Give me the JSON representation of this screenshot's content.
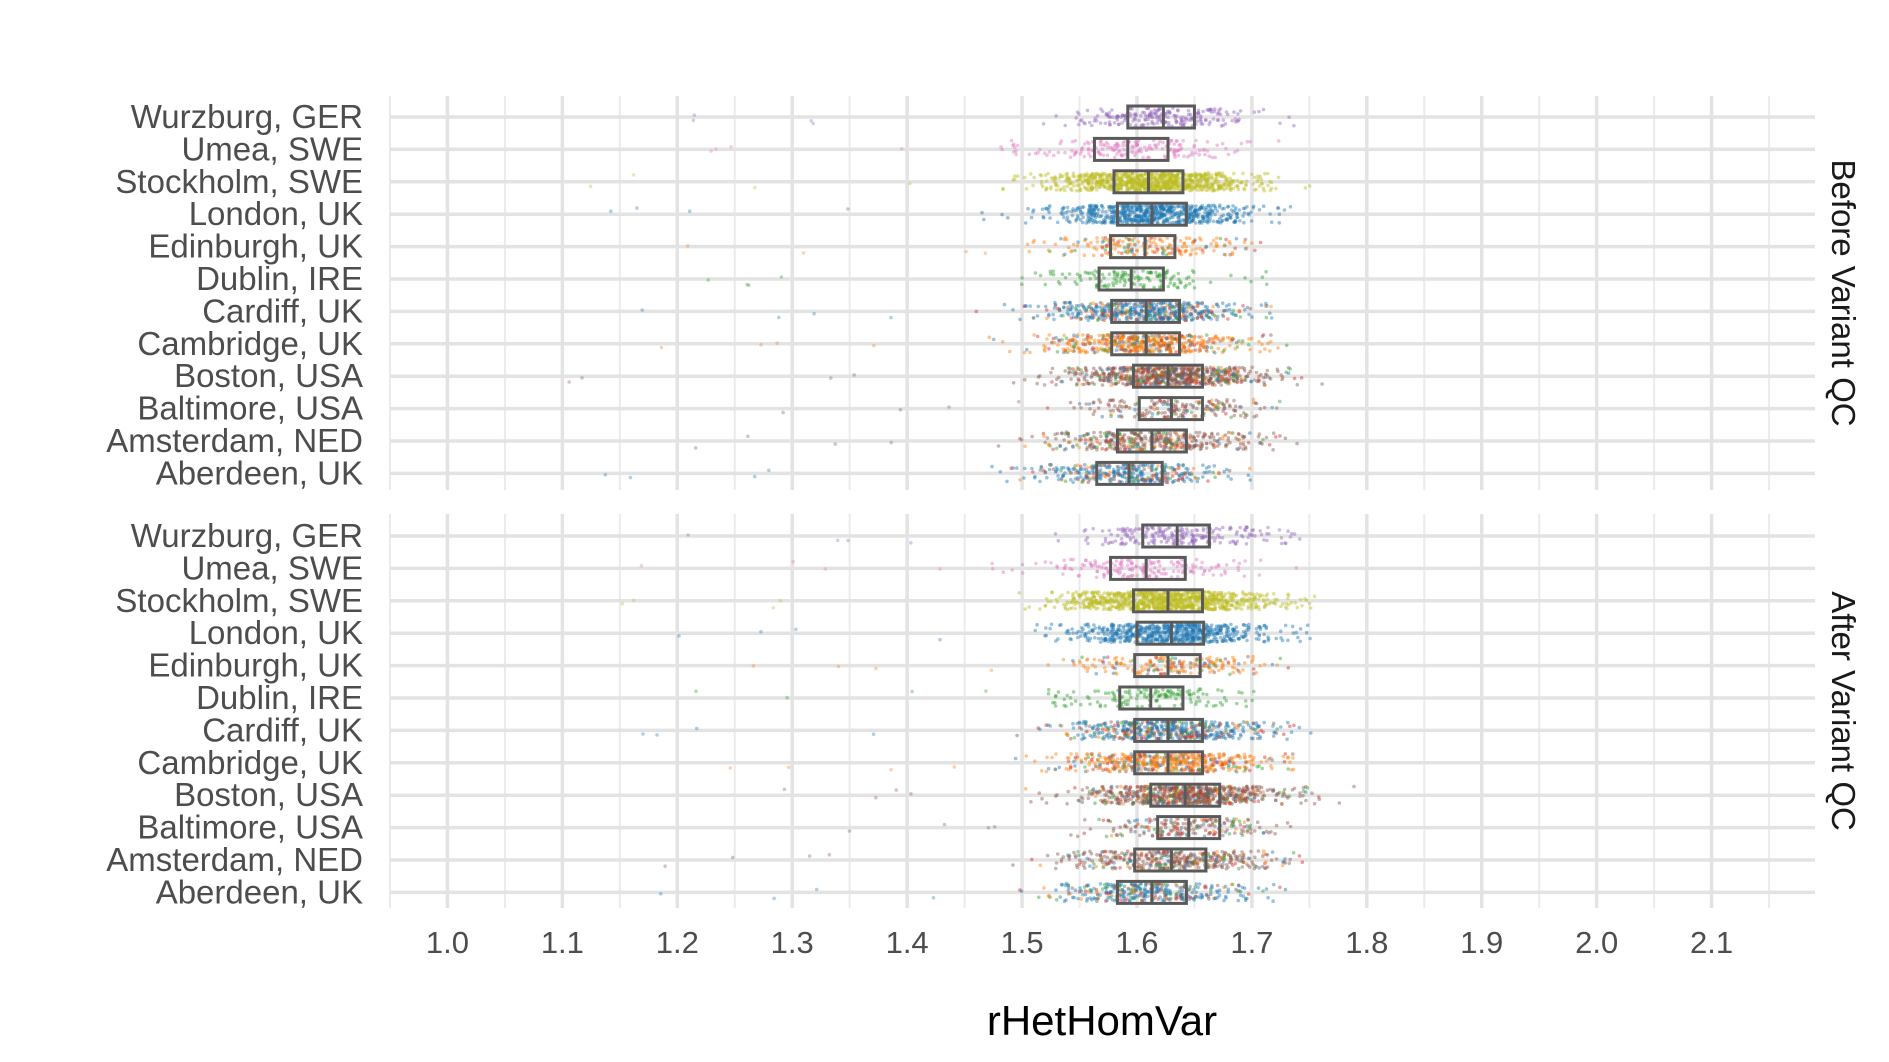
{
  "chart_data": {
    "type": "boxplot-jitter",
    "xlabel": "rHetHomVar",
    "xlim": [
      0.95,
      2.19
    ],
    "x_ticks": [
      "1.0",
      "1.1",
      "1.2",
      "1.3",
      "1.4",
      "1.5",
      "1.6",
      "1.7",
      "1.8",
      "1.9",
      "2.0",
      "2.1"
    ],
    "grid": "on",
    "facet_labels": [
      "Before Variant QC",
      "After Variant QC"
    ],
    "series_colors": {
      "Wurzburg, GER": "#9467bd",
      "Umea, SWE": "#e377c2",
      "Stockholm, SWE": "#bcbd22",
      "London, UK": "#1f77b4",
      "Edinburgh, UK": "#ff7f0e",
      "Dublin, IRE": "#2ca02c",
      "Cardiff, UK": "#1f77b4",
      "Cambridge, UK": "#ff7f0e",
      "Boston, USA": "#8c564b",
      "Baltimore, USA": "#8c564b",
      "Amsterdam, NED": "#8c564b",
      "Aberdeen, UK": "#1f77b4"
    },
    "panels": [
      {
        "facet": "Before Variant QC",
        "categories": [
          {
            "name": "Wurzburg, GER",
            "q1": 1.592,
            "median": 1.623,
            "q3": 1.65,
            "min": 1.5,
            "max": 1.74,
            "n": 220
          },
          {
            "name": "Umea, SWE",
            "q1": 1.563,
            "median": 1.592,
            "q3": 1.627,
            "min": 1.48,
            "max": 1.73,
            "n": 180
          },
          {
            "name": "Stockholm, SWE",
            "q1": 1.58,
            "median": 1.61,
            "q3": 1.64,
            "min": 1.43,
            "max": 1.76,
            "n": 900
          },
          {
            "name": "London, UK",
            "q1": 1.583,
            "median": 1.613,
            "q3": 1.643,
            "min": 1.45,
            "max": 1.75,
            "n": 650
          },
          {
            "name": "Edinburgh, UK",
            "q1": 1.577,
            "median": 1.607,
            "q3": 1.633,
            "min": 1.5,
            "max": 1.72,
            "n": 200
          },
          {
            "name": "Dublin, IRE",
            "q1": 1.567,
            "median": 1.595,
            "q3": 1.623,
            "min": 1.49,
            "max": 1.73,
            "n": 140
          },
          {
            "name": "Cardiff, UK",
            "q1": 1.578,
            "median": 1.608,
            "q3": 1.637,
            "min": 1.42,
            "max": 1.75,
            "n": 520
          },
          {
            "name": "Cambridge, UK",
            "q1": 1.578,
            "median": 1.608,
            "q3": 1.637,
            "min": 1.46,
            "max": 1.74,
            "n": 520
          },
          {
            "name": "Boston, USA",
            "q1": 1.597,
            "median": 1.627,
            "q3": 1.657,
            "min": 1.41,
            "max": 1.79,
            "n": 750
          },
          {
            "name": "Baltimore, USA",
            "q1": 1.602,
            "median": 1.63,
            "q3": 1.657,
            "min": 1.52,
            "max": 1.74,
            "n": 200
          },
          {
            "name": "Amsterdam, NED",
            "q1": 1.583,
            "median": 1.613,
            "q3": 1.643,
            "min": 1.45,
            "max": 1.74,
            "n": 420
          },
          {
            "name": "Aberdeen, UK",
            "q1": 1.565,
            "median": 1.593,
            "q3": 1.622,
            "min": 1.44,
            "max": 1.72,
            "n": 360
          }
        ]
      },
      {
        "facet": "After Variant QC",
        "categories": [
          {
            "name": "Wurzburg, GER",
            "q1": 1.605,
            "median": 1.635,
            "q3": 1.663,
            "min": 1.51,
            "max": 1.75,
            "n": 220
          },
          {
            "name": "Umea, SWE",
            "q1": 1.577,
            "median": 1.608,
            "q3": 1.642,
            "min": 1.47,
            "max": 1.74,
            "n": 180
          },
          {
            "name": "Stockholm, SWE",
            "q1": 1.597,
            "median": 1.627,
            "q3": 1.657,
            "min": 1.45,
            "max": 1.78,
            "n": 900
          },
          {
            "name": "London, UK",
            "q1": 1.6,
            "median": 1.63,
            "q3": 1.658,
            "min": 1.47,
            "max": 1.77,
            "n": 650
          },
          {
            "name": "Edinburgh, UK",
            "q1": 1.598,
            "median": 1.627,
            "q3": 1.655,
            "min": 1.52,
            "max": 1.74,
            "n": 200
          },
          {
            "name": "Dublin, IRE",
            "q1": 1.585,
            "median": 1.612,
            "q3": 1.64,
            "min": 1.51,
            "max": 1.73,
            "n": 140
          },
          {
            "name": "Cardiff, UK",
            "q1": 1.598,
            "median": 1.627,
            "q3": 1.657,
            "min": 1.43,
            "max": 1.77,
            "n": 520
          },
          {
            "name": "Cambridge, UK",
            "q1": 1.598,
            "median": 1.627,
            "q3": 1.657,
            "min": 1.47,
            "max": 1.76,
            "n": 520
          },
          {
            "name": "Boston, USA",
            "q1": 1.612,
            "median": 1.642,
            "q3": 1.672,
            "min": 1.43,
            "max": 1.81,
            "n": 750
          },
          {
            "name": "Baltimore, USA",
            "q1": 1.618,
            "median": 1.645,
            "q3": 1.672,
            "min": 1.53,
            "max": 1.76,
            "n": 200
          },
          {
            "name": "Amsterdam, NED",
            "q1": 1.598,
            "median": 1.63,
            "q3": 1.66,
            "min": 1.47,
            "max": 1.76,
            "n": 420
          },
          {
            "name": "Aberdeen, UK",
            "q1": 1.583,
            "median": 1.613,
            "q3": 1.643,
            "min": 1.46,
            "max": 1.73,
            "n": 360
          }
        ]
      }
    ]
  }
}
